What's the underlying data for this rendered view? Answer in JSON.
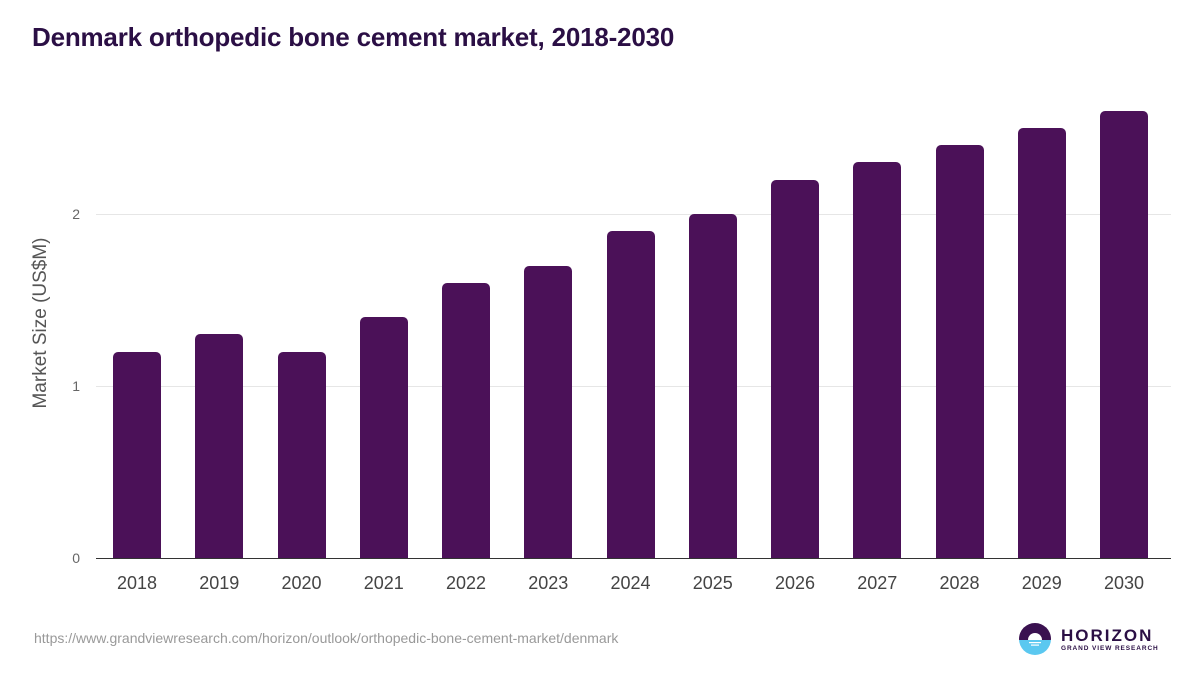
{
  "title": "Denmark orthopedic bone cement market, 2018-2030",
  "source_url": "https://www.grandviewresearch.com/horizon/outlook/orthopedic-bone-cement-market/denmark",
  "logo": {
    "main": "HORIZON",
    "sub": "GRAND VIEW RESEARCH"
  },
  "colors": {
    "bar": "#4b1158",
    "title": "#2b0f45",
    "logo_top": "#3a1150",
    "logo_bottom": "#5bc8f0"
  },
  "chart_data": {
    "type": "bar",
    "title": "Denmark orthopedic bone cement market, 2018-2030",
    "xlabel": "",
    "ylabel": "Market Size (US$M)",
    "categories": [
      "2018",
      "2019",
      "2020",
      "2021",
      "2022",
      "2023",
      "2024",
      "2025",
      "2026",
      "2027",
      "2028",
      "2029",
      "2030"
    ],
    "values": [
      1.2,
      1.3,
      1.2,
      1.4,
      1.6,
      1.7,
      1.9,
      2.0,
      2.2,
      2.3,
      2.4,
      2.5,
      2.6
    ],
    "yticks": [
      "0",
      "1",
      "2"
    ],
    "ylim": [
      0,
      2.7
    ],
    "grid": true,
    "legend": "none"
  }
}
